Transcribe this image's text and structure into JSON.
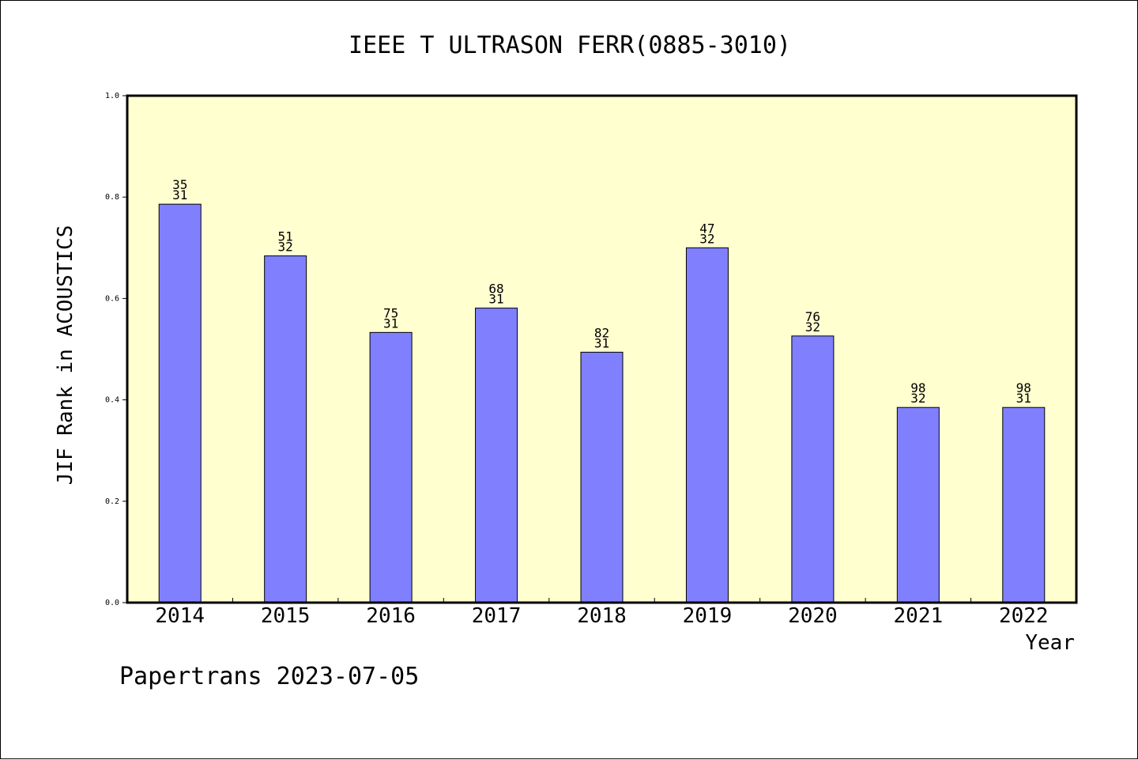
{
  "chart_data": {
    "type": "bar",
    "title": "IEEE T ULTRASON FERR(0885-3010)",
    "xlabel": "Year",
    "ylabel": "JIF Rank in ACOUSTICS",
    "ylim": [
      0,
      1.0
    ],
    "yticks": [
      "0.0",
      "0.2",
      "0.4",
      "0.6",
      "0.8",
      "1.0"
    ],
    "ytick_values": [
      0,
      0.2,
      0.4,
      0.6,
      0.8,
      1.0
    ],
    "categories": [
      "2014",
      "2015",
      "2016",
      "2017",
      "2018",
      "2019",
      "2020",
      "2021",
      "2022"
    ],
    "values": [
      0.786,
      0.684,
      0.533,
      0.581,
      0.494,
      0.7,
      0.526,
      0.385,
      0.385
    ],
    "rank": [
      "35",
      "51",
      "75",
      "68",
      "82",
      "47",
      "76",
      "98",
      "98"
    ],
    "total": [
      "31",
      "32",
      "31",
      "31",
      "31",
      "32",
      "32",
      "32",
      "31"
    ],
    "bar_color": "#8080ff",
    "plot_bg": "#ffffd0",
    "grid": false,
    "legend": "none"
  },
  "footer": {
    "credit": "Papertrans 2023-07-05"
  }
}
